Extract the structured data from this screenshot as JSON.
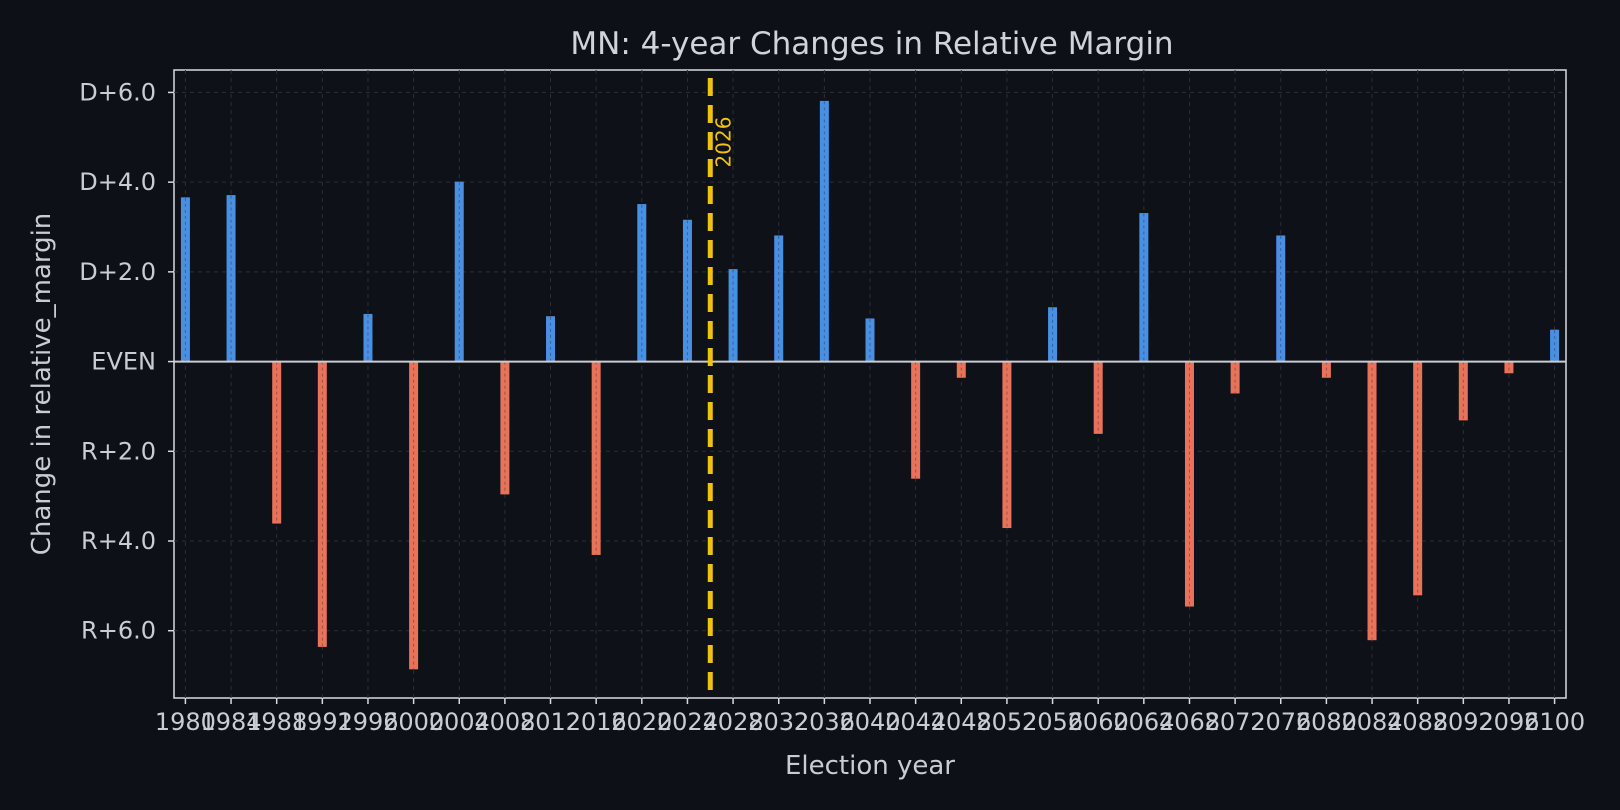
{
  "colors": {
    "background": "#0d1117",
    "positive": "#4a90e2",
    "negative": "#e8735a",
    "marker": "#f2c20c"
  },
  "chart_data": {
    "type": "bar",
    "title": "MN: 4-year Changes in Relative Margin",
    "xlabel": "Election year",
    "ylabel": "Change in relative_margin",
    "ylim": [
      -7.5,
      6.5
    ],
    "xlim": [
      1979,
      2101
    ],
    "grid": true,
    "yticks": [
      {
        "value": 6,
        "label": "D+6.0"
      },
      {
        "value": 4,
        "label": "D+4.0"
      },
      {
        "value": 2,
        "label": "D+2.0"
      },
      {
        "value": 0,
        "label": "EVEN"
      },
      {
        "value": -2,
        "label": "R+2.0"
      },
      {
        "value": -4,
        "label": "R+4.0"
      },
      {
        "value": -6,
        "label": "R+6.0"
      }
    ],
    "xticks": [
      "1980",
      "1984",
      "1988",
      "1992",
      "1996",
      "2000",
      "2004",
      "2008",
      "2012",
      "2016",
      "2020",
      "2024",
      "2028",
      "2032",
      "2036",
      "2040",
      "2044",
      "2048",
      "2052",
      "2056",
      "2060",
      "2064",
      "2068",
      "2072",
      "2076",
      "2080",
      "2084",
      "2088",
      "2092",
      "2096",
      "2100"
    ],
    "marker": {
      "x": 2026,
      "label": "2026"
    },
    "x": [
      1980,
      1984,
      1988,
      1992,
      1996,
      2000,
      2004,
      2008,
      2012,
      2016,
      2020,
      2024,
      2028,
      2032,
      2036,
      2040,
      2044,
      2048,
      2052,
      2056,
      2060,
      2064,
      2068,
      2072,
      2076,
      2080,
      2084,
      2088,
      2092,
      2096,
      2100
    ],
    "values": [
      3.65,
      3.7,
      -3.6,
      -6.35,
      1.05,
      -6.85,
      4.0,
      -2.95,
      1.0,
      -4.3,
      3.5,
      3.15,
      2.05,
      2.8,
      5.8,
      0.95,
      -2.6,
      -0.35,
      -3.7,
      1.2,
      -1.6,
      3.3,
      -5.45,
      -0.7,
      2.8,
      -0.35,
      -6.2,
      -5.2,
      -1.3,
      -0.25,
      0.7
    ]
  }
}
